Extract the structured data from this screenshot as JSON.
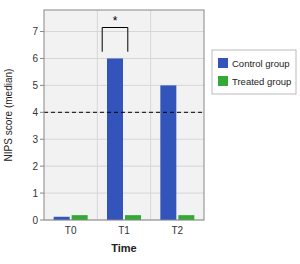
{
  "chart_data": {
    "type": "bar",
    "categories": [
      "T0",
      "T1",
      "T2"
    ],
    "series": [
      {
        "name": "Control group",
        "color": "#3355bb",
        "values": [
          0.12,
          6.0,
          5.0
        ]
      },
      {
        "name": "Treated group",
        "color": "#33aa33",
        "values": [
          0.18,
          0.18,
          0.18
        ]
      }
    ],
    "x_label": "Time",
    "y_label": "NIPS score (median)",
    "ylim": [
      0,
      7.8
    ],
    "yticks": [
      0,
      1,
      2,
      3,
      4,
      5,
      6,
      7
    ],
    "grid": true,
    "legend": "right",
    "reference_lines": [
      {
        "y": 4.0,
        "line_style": "dashed"
      }
    ],
    "annotations": [
      {
        "text": "*",
        "category": "T1",
        "series": "Control group",
        "y": 7.4,
        "bracket": [
          6.25,
          7.15
        ]
      }
    ]
  }
}
